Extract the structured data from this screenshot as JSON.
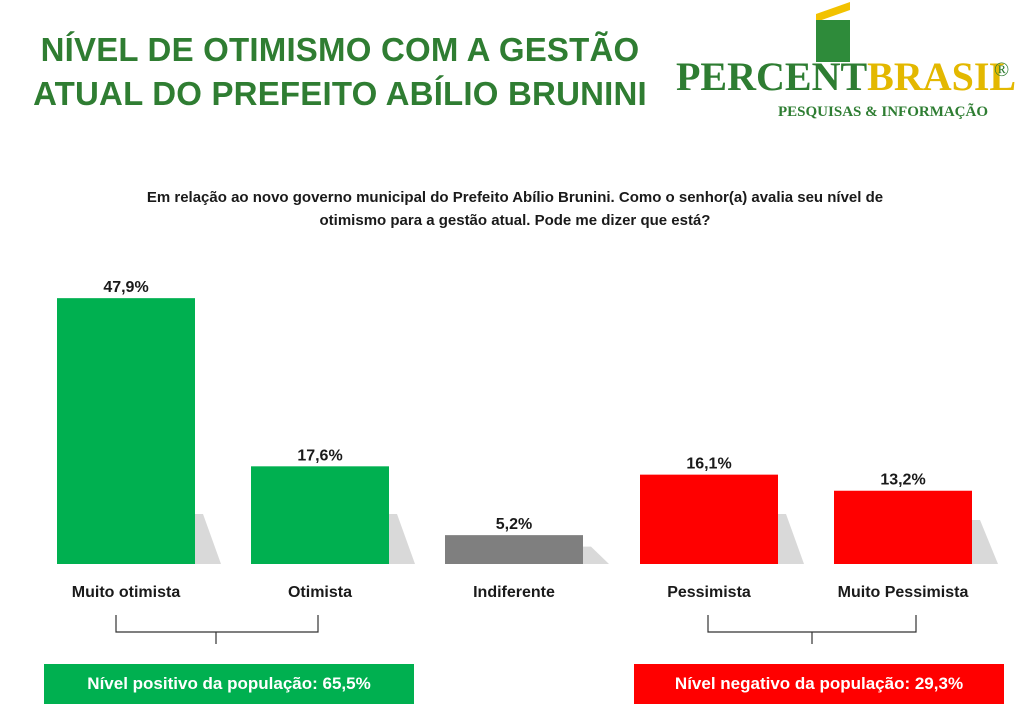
{
  "header": {
    "title_line1": "NÍVEL DE OTIMISMO COM A GESTÃO",
    "title_line2": "ATUAL DO PREFEITO ABÍLIO BRUNINI"
  },
  "logo": {
    "brand_part1": "PERCENT",
    "brand_part2": "BRASIL",
    "registered": "®",
    "tagline": "PESQUISAS & INFORMAÇÃO"
  },
  "question": {
    "line1": "Em relação ao novo governo municipal do Prefeito Abílio Brunini. Como o senhor(a) avalia seu nível de",
    "line2": "otimismo para a gestão atual. Pode me dizer que está?"
  },
  "chart_data": {
    "type": "bar",
    "categories": [
      "Muito otimista",
      "Otimista",
      "Indiferente",
      "Pessimista",
      "Muito Pessimista"
    ],
    "values": [
      47.9,
      17.6,
      5.2,
      16.1,
      13.2
    ],
    "value_labels": [
      "47,9%",
      "17,6%",
      "5,2%",
      "16,1%",
      "13,2%"
    ],
    "colors": [
      "#00b050",
      "#00b050",
      "#7f7f7f",
      "#ff0000",
      "#ff0000"
    ],
    "title": "",
    "xlabel": "",
    "ylabel": "",
    "ylim": [
      0,
      50
    ],
    "grid": false
  },
  "summary": {
    "positive": "Nível positivo da população: 65,5%",
    "negative": "Nível negativo da população: 29,3%",
    "positive_color": "#00b050",
    "negative_color": "#ff0000"
  }
}
